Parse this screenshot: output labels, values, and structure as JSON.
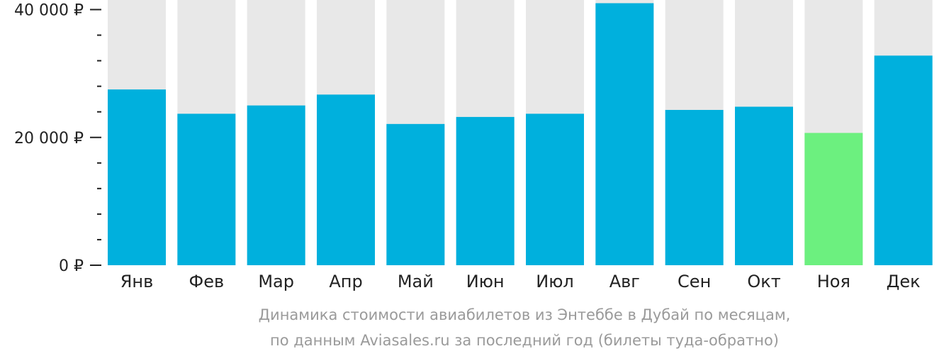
{
  "chart_data": {
    "type": "bar",
    "categories": [
      "Янв",
      "Фев",
      "Мар",
      "Апр",
      "Май",
      "Июн",
      "Июл",
      "Авг",
      "Сен",
      "Окт",
      "Ноя",
      "Дек"
    ],
    "values": [
      27500,
      23700,
      25000,
      26700,
      22100,
      23200,
      23700,
      41000,
      24300,
      24800,
      20700,
      32800
    ],
    "ylim": [
      0,
      41500
    ],
    "yticks": [
      {
        "value": 0,
        "label": "0 ₽"
      },
      {
        "value": 20000,
        "label": "20 000 ₽"
      },
      {
        "value": 40000,
        "label": "40 000 ₽"
      }
    ],
    "minor_tick_step": 4000,
    "highlight_index": 10,
    "colors": {
      "bar": "#00b0dd",
      "highlight": "#6cf07f",
      "background_bar": "#e8e8e8",
      "axis": "#222222"
    },
    "caption": [
      "Динамика стоимости авиабилетов из Энтеббе в Дубай по месяцам,",
      "по данным Aviasales.ru за последний год (билеты туда-обратно)"
    ]
  }
}
